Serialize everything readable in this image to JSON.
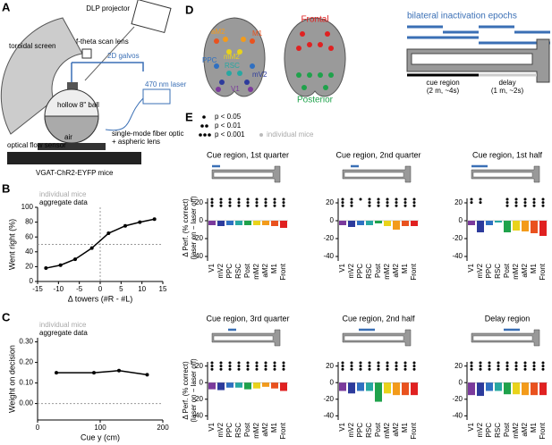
{
  "panels": [
    "A",
    "B",
    "C",
    "D",
    "E"
  ],
  "schematic": {
    "projector": "DLP projector",
    "screen": "toroidal screen",
    "lens": "f-theta scan lens",
    "galvos": "2D galvos",
    "laser": "470 nm laser",
    "ball": "hollow 8\" ball",
    "air": "air",
    "fiber": "single-mode fiber optic",
    "fiber2": "+ aspheric lens",
    "sensor": "optical flow sensor",
    "mice": "VGAT-ChR2-EYFP mice"
  },
  "brain": {
    "areas": [
      "aM2",
      "mM2",
      "M1",
      "PPC",
      "mV2",
      "RSC",
      "V1"
    ],
    "frontal": "Frontal",
    "posterior": "Posterior",
    "epochs_title": "bilateral inactivation epochs",
    "cue": "cue region",
    "cue_detail": "(2 m, ~4s)",
    "delay": "delay",
    "delay_detail": "(1 m, ~2s)"
  },
  "panel_e": {
    "ylabel": "Δ Perf. (% correct)",
    "ylabel2": "(laser on − laser off)",
    "legend": [
      "p < 0.05",
      "p < 0.01",
      "p < 0.001"
    ],
    "individual": "individual mice"
  },
  "chart_data": [
    {
      "type": "line",
      "background_label": "individual mice",
      "xlabel": "Δ towers (#R - #L)",
      "ylabel": "Went right (%)",
      "xlim": [
        -15,
        15
      ],
      "xticks": [
        -15,
        -10,
        -5,
        0,
        5,
        10,
        15
      ],
      "ylim": [
        0,
        100
      ],
      "yticks": [
        0,
        20,
        40,
        60,
        80,
        100
      ],
      "vlines": [
        0
      ],
      "hlines": [
        50
      ],
      "series": [
        {
          "name": "aggregate data",
          "color": "#000000",
          "x": [
            -13,
            -9.5,
            -6,
            -2,
            2,
            6,
            9.5,
            13
          ],
          "values": [
            18,
            22,
            30,
            45,
            65,
            75,
            80,
            84
          ]
        }
      ]
    },
    {
      "type": "line",
      "background_label": "individual mice",
      "xlabel": "Cue y (cm)",
      "ylabel": "Weight on decision",
      "xlim": [
        0,
        200
      ],
      "xticks": [
        0,
        100,
        200
      ],
      "ylim": [
        -0.08,
        0.32
      ],
      "yticks": [
        {
          "value": 0,
          "label": "0.00"
        },
        {
          "value": 0.1,
          "label": "0.10"
        },
        {
          "value": 0.2,
          "label": "0.20"
        },
        {
          "value": 0.3,
          "label": "0.30"
        }
      ],
      "hlines": [
        0
      ],
      "series": [
        {
          "name": "aggregate data",
          "color": "#000000",
          "x": [
            30,
            90,
            130,
            175
          ],
          "values": [
            0.15,
            0.15,
            0.16,
            0.14
          ]
        }
      ]
    },
    {
      "type": "bar",
      "title": "Cue region, 1st quarter",
      "categories": [
        "V1",
        "mV2",
        "PPC",
        "RSC",
        "Post",
        "mM2",
        "aM2",
        "M1",
        "Front"
      ],
      "colors": [
        "#7b3a9c",
        "#2d3b9c",
        "#2f70c2",
        "#27a8a2",
        "#1fa24b",
        "#e9d31b",
        "#f39b1b",
        "#e9521f",
        "#e02121"
      ],
      "ylim": [
        -45,
        25
      ],
      "yticks": [
        -40,
        -20,
        0,
        20
      ],
      "values": [
        -5,
        -6,
        -5,
        -5,
        -5,
        -5,
        -5,
        -6,
        -8
      ],
      "significance": [
        3,
        3,
        3,
        3,
        3,
        3,
        3,
        3,
        3
      ]
    },
    {
      "type": "bar",
      "title": "Cue region, 2nd quarter",
      "categories": [
        "V1",
        "mV2",
        "PPC",
        "RSC",
        "Post",
        "mM2",
        "aM2",
        "M1",
        "Front"
      ],
      "colors": [
        "#7b3a9c",
        "#2d3b9c",
        "#2f70c2",
        "#27a8a2",
        "#1fa24b",
        "#e9d31b",
        "#f39b1b",
        "#e9521f",
        "#e02121"
      ],
      "ylim": [
        -45,
        25
      ],
      "yticks": [
        -40,
        -20,
        0,
        20
      ],
      "values": [
        -5,
        -7,
        -5,
        -5,
        -3,
        -6,
        -10,
        -6,
        -6
      ],
      "significance": [
        3,
        3,
        1,
        3,
        3,
        3,
        3,
        3,
        3
      ]
    },
    {
      "type": "bar",
      "title": "Cue region, 1st half",
      "categories": [
        "V1",
        "mV2",
        "PPC",
        "RSC",
        "Post",
        "mM2",
        "aM2",
        "M1",
        "Front"
      ],
      "colors": [
        "#7b3a9c",
        "#2d3b9c",
        "#2f70c2",
        "#27a8a2",
        "#1fa24b",
        "#e9d31b",
        "#f39b1b",
        "#e9521f",
        "#e02121"
      ],
      "ylim": [
        -45,
        25
      ],
      "yticks": [
        -40,
        -20,
        0,
        20
      ],
      "values": [
        -5,
        -13,
        -5,
        -2,
        -13,
        -11,
        -12,
        -14,
        -17
      ],
      "significance": [
        2,
        2,
        0,
        0,
        3,
        3,
        3,
        3,
        3
      ]
    },
    {
      "type": "bar",
      "title": "Cue region, 3rd quarter",
      "categories": [
        "V1",
        "mV2",
        "PPC",
        "RSC",
        "Post",
        "mM2",
        "aM2",
        "M1",
        "Front"
      ],
      "colors": [
        "#7b3a9c",
        "#2d3b9c",
        "#2f70c2",
        "#27a8a2",
        "#1fa24b",
        "#e9d31b",
        "#f39b1b",
        "#e9521f",
        "#e02121"
      ],
      "ylim": [
        -45,
        25
      ],
      "yticks": [
        -40,
        -20,
        0,
        20
      ],
      "values": [
        -8,
        -9,
        -6,
        -6,
        -8,
        -7,
        -5,
        -7,
        -10
      ],
      "significance": [
        3,
        3,
        3,
        3,
        3,
        3,
        3,
        3,
        3
      ]
    },
    {
      "type": "bar",
      "title": "Cue region, 2nd half",
      "categories": [
        "V1",
        "mV2",
        "PPC",
        "RSC",
        "Post",
        "mM2",
        "aM2",
        "M1",
        "Front"
      ],
      "colors": [
        "#7b3a9c",
        "#2d3b9c",
        "#2f70c2",
        "#27a8a2",
        "#1fa24b",
        "#e9d31b",
        "#f39b1b",
        "#e9521f",
        "#e02121"
      ],
      "ylim": [
        -45,
        25
      ],
      "yticks": [
        -40,
        -20,
        0,
        20
      ],
      "values": [
        -10,
        -13,
        -10,
        -10,
        -23,
        -13,
        -15,
        -15,
        -15
      ],
      "significance": [
        3,
        3,
        3,
        3,
        3,
        3,
        3,
        3,
        3
      ]
    },
    {
      "type": "bar",
      "title": "Delay region",
      "categories": [
        "V1",
        "mV2",
        "PPC",
        "RSC",
        "Post",
        "mM2",
        "aM2",
        "M1",
        "Front"
      ],
      "colors": [
        "#7b3a9c",
        "#2d3b9c",
        "#2f70c2",
        "#27a8a2",
        "#1fa24b",
        "#e9d31b",
        "#f39b1b",
        "#e9521f",
        "#e02121"
      ],
      "ylim": [
        -45,
        25
      ],
      "yticks": [
        -40,
        -20,
        0,
        20
      ],
      "values": [
        -15,
        -16,
        -10,
        -10,
        -14,
        -14,
        -15,
        -15,
        -15
      ],
      "significance": [
        3,
        3,
        3,
        3,
        3,
        3,
        3,
        3,
        3
      ]
    }
  ]
}
